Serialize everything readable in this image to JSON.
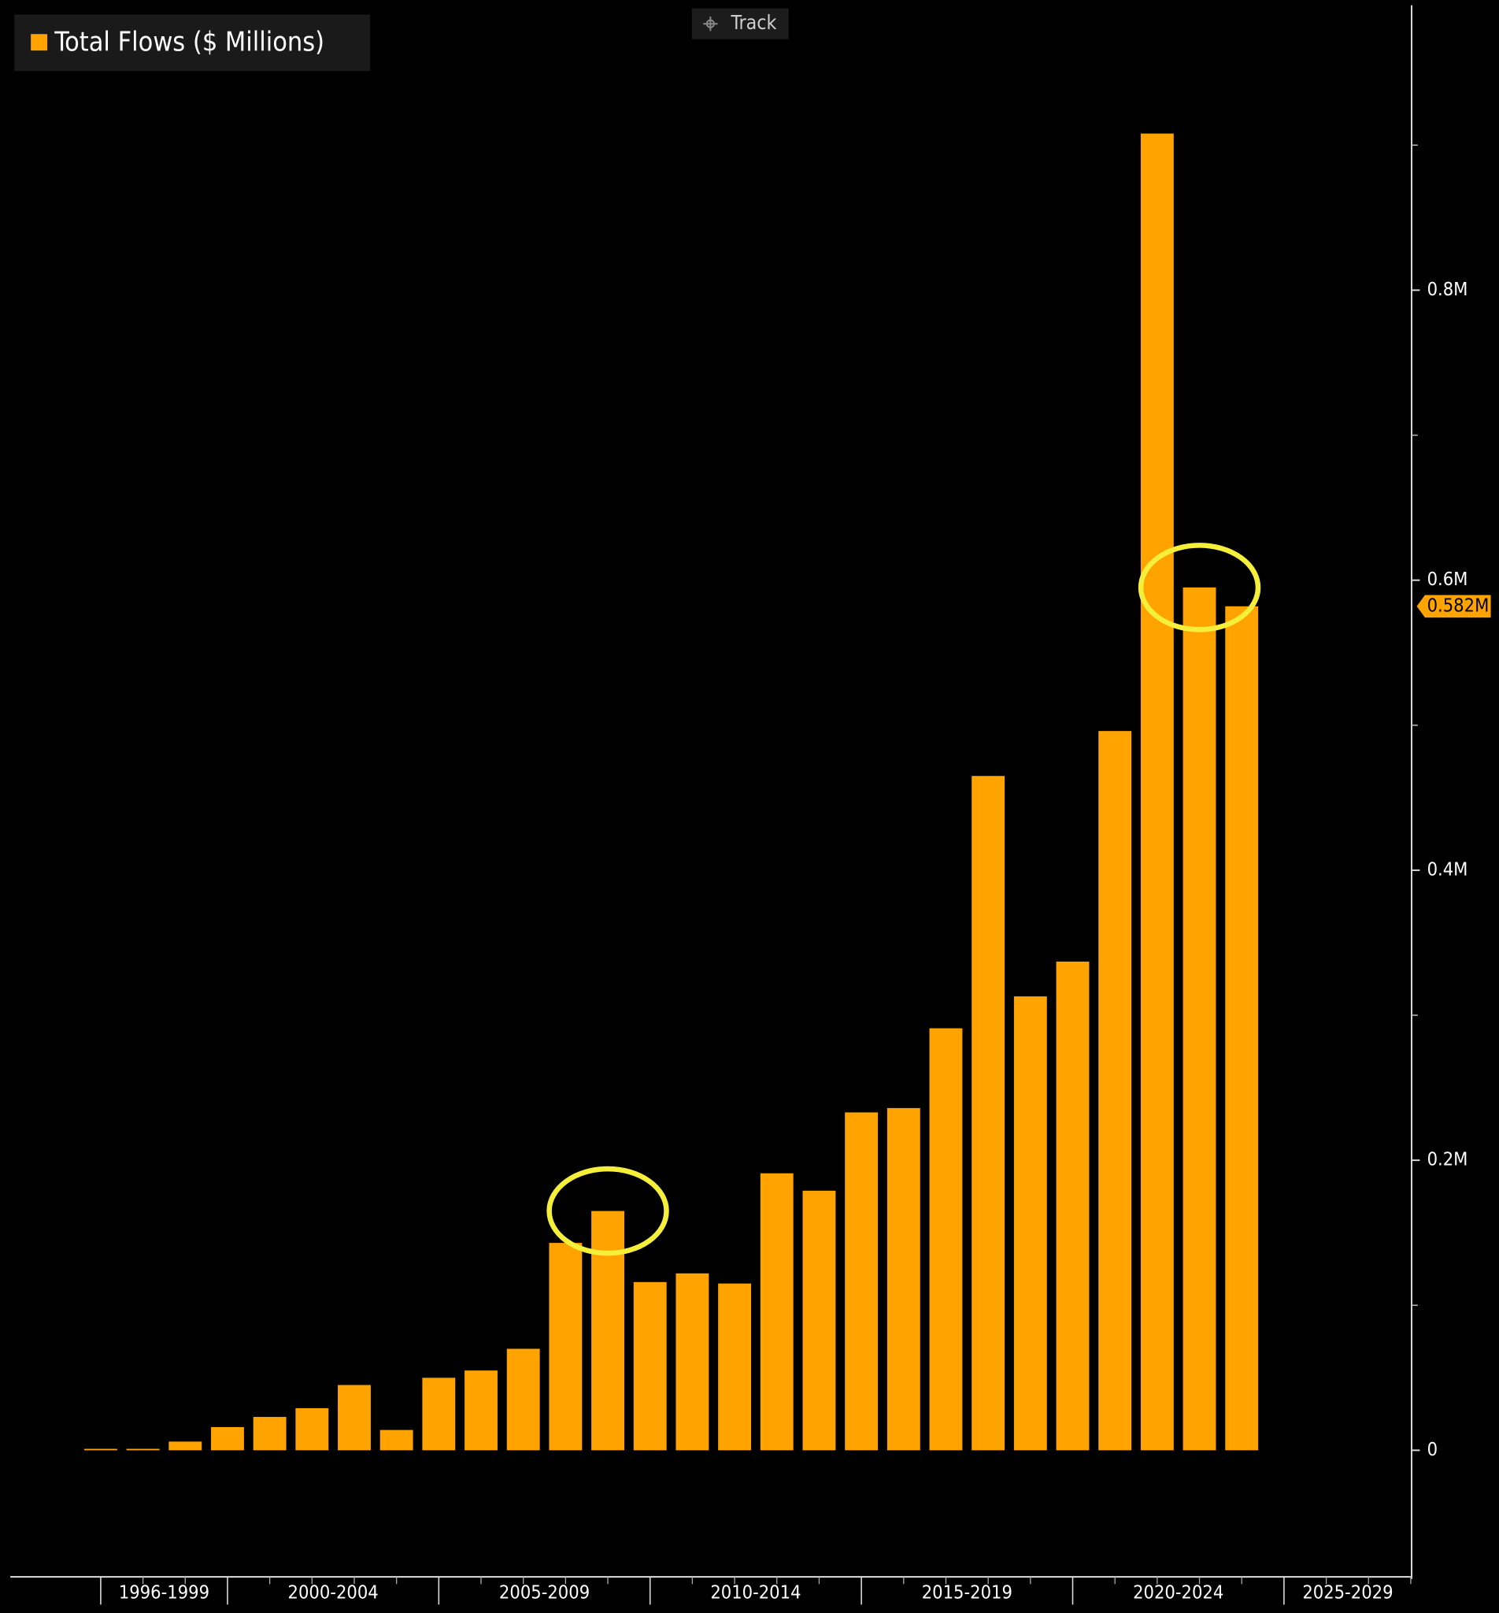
{
  "toolbar": {
    "track": "Track"
  },
  "chart_data": {
    "type": "bar",
    "x": [
      1997,
      1998,
      1999,
      2000,
      2001,
      2002,
      2003,
      2004,
      2005,
      2006,
      2007,
      2008,
      2009,
      2010,
      2011,
      2012,
      2013,
      2014,
      2015,
      2016,
      2017,
      2018,
      2019,
      2020,
      2021,
      2022,
      2023,
      2024
    ],
    "series": [
      {
        "name": "Total Flows ($ Millions)",
        "color": "#ffa300",
        "values": [
          1000,
          1000,
          6000,
          16000,
          23000,
          29000,
          45000,
          14000,
          50000,
          55000,
          70000,
          143000,
          165000,
          116000,
          122000,
          115000,
          191000,
          179000,
          233000,
          236000,
          291000,
          465000,
          313000,
          337000,
          496000,
          908000,
          595000,
          582000
        ],
        "value_labels": [
          null,
          null,
          null,
          null,
          null,
          null,
          null,
          null,
          null,
          null,
          null,
          null,
          null,
          null,
          null,
          null,
          null,
          null,
          null,
          null,
          null,
          null,
          null,
          null,
          null,
          null,
          null,
          "0.582M"
        ]
      }
    ],
    "xlim": [
      1994.86,
      2028.02
    ],
    "x_bands": [
      {
        "label": "1996-1999",
        "from": 1997,
        "to": 2000
      },
      {
        "label": "2000-2004",
        "from": 2000,
        "to": 2005
      },
      {
        "label": "2005-2009",
        "from": 2005,
        "to": 2010
      },
      {
        "label": "2010-2014",
        "from": 2010,
        "to": 2015
      },
      {
        "label": "2015-2019",
        "from": 2015,
        "to": 2020
      },
      {
        "label": "2020-2024",
        "from": 2020,
        "to": 2025
      },
      {
        "label": "2025-2029",
        "from": 2025,
        "to": 2030
      }
    ],
    "ylim": [
      -88000,
      1000000
    ],
    "yticks": [
      0,
      {
        "value": 200000,
        "label": "0.2M"
      },
      {
        "value": 400000,
        "label": "0.4M"
      },
      {
        "value": 600000,
        "label": "0.6M"
      },
      {
        "value": 800000,
        "label": "0.8M"
      }
    ],
    "minor_yticks": [
      100000,
      300000,
      500000,
      700000,
      900000
    ],
    "highlight_x": [
      2009,
      2023
    ],
    "highlight_color": "#f5ef3c",
    "legend": "top-left"
  }
}
